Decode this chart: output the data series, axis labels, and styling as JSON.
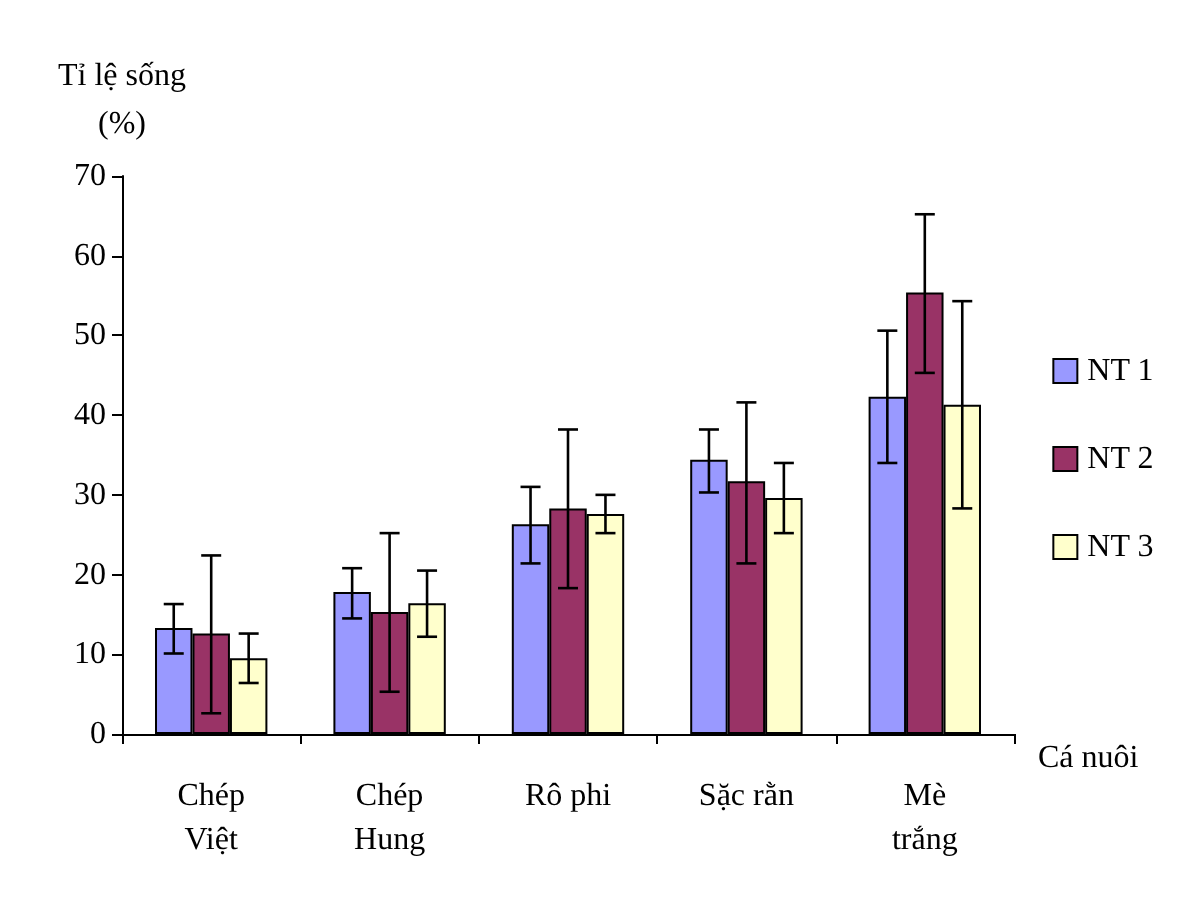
{
  "chart_data": {
    "type": "bar",
    "ylabel": "Tỉ lệ sống\n(%)",
    "xlabel": "Cá nuôi",
    "categories": [
      "Chép\nViệt",
      "Chép\nHung",
      "Rô phi",
      "Sặc rằn",
      "Mè\ntrắng"
    ],
    "series": [
      {
        "name": "NT 1",
        "color": "#9999ff",
        "values": [
          13.3,
          17.8,
          26.3,
          34.4,
          42.3
        ],
        "errors": [
          [
            10.1,
            16.3
          ],
          [
            14.5,
            20.8
          ],
          [
            21.4,
            31.0
          ],
          [
            30.3,
            38.2
          ],
          [
            34.0,
            50.6
          ]
        ]
      },
      {
        "name": "NT 2",
        "color": "#993366",
        "values": [
          12.6,
          15.3,
          28.3,
          31.7,
          55.4
        ],
        "errors": [
          [
            2.6,
            22.4
          ],
          [
            5.3,
            25.2
          ],
          [
            18.3,
            38.2
          ],
          [
            21.4,
            41.6
          ],
          [
            45.3,
            65.2
          ]
        ]
      },
      {
        "name": "NT 3",
        "color": "#ffffcc",
        "values": [
          9.5,
          16.4,
          27.6,
          29.6,
          41.3
        ],
        "errors": [
          [
            6.4,
            12.6
          ],
          [
            12.2,
            20.5
          ],
          [
            25.2,
            30.0
          ],
          [
            25.2,
            34.0
          ],
          [
            28.3,
            54.3
          ]
        ]
      }
    ],
    "ylim": [
      0,
      70
    ],
    "yticks": [
      0,
      10,
      20,
      30,
      40,
      50,
      60,
      70
    ],
    "grid": false,
    "legend": "right"
  }
}
